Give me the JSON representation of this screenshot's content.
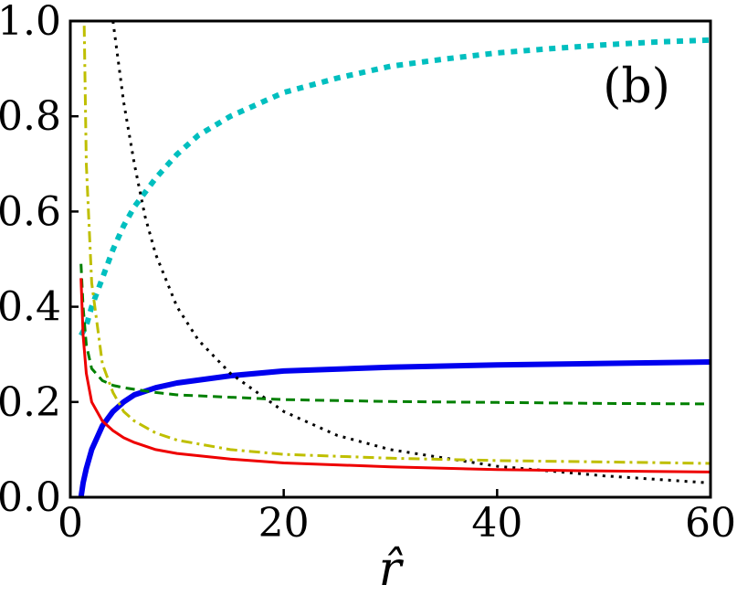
{
  "chart_data": {
    "type": "line",
    "title": "",
    "panel_label": "(b)",
    "xlabel": "r̂",
    "ylabel": "",
    "xlim": [
      0,
      60
    ],
    "ylim": [
      0,
      1.0
    ],
    "x_ticks": [
      0,
      20,
      40,
      60
    ],
    "x_tick_labels": [
      "0",
      "20",
      "40",
      "60"
    ],
    "y_ticks": [
      0,
      0.2,
      0.4,
      0.6,
      0.8,
      1.0
    ],
    "y_tick_labels": [
      "0.0",
      "0.2",
      "0.4",
      "0.6",
      "0.8",
      "1.0"
    ],
    "grid": false,
    "legend": "none",
    "series": [
      {
        "color": "#00bfbf",
        "style": "dotted",
        "width": "thick",
        "x": [
          1,
          1.5,
          2,
          3,
          4,
          5,
          6,
          8,
          10,
          12,
          15,
          20,
          25,
          30,
          35,
          40,
          45,
          50,
          55,
          60
        ],
        "y": [
          0.34,
          0.36,
          0.4,
          0.46,
          0.52,
          0.57,
          0.61,
          0.67,
          0.72,
          0.76,
          0.8,
          0.85,
          0.88,
          0.905,
          0.92,
          0.933,
          0.942,
          0.95,
          0.956,
          0.96
        ]
      },
      {
        "color": "#0000ee",
        "style": "solid",
        "width": "thick",
        "x": [
          1,
          1.2,
          1.5,
          2,
          3,
          4,
          5,
          6,
          8,
          10,
          15,
          20,
          30,
          40,
          50,
          60
        ],
        "y": [
          0.0,
          0.03,
          0.06,
          0.1,
          0.15,
          0.18,
          0.2,
          0.215,
          0.23,
          0.24,
          0.255,
          0.265,
          0.273,
          0.278,
          0.281,
          0.284
        ]
      },
      {
        "color": "#000000",
        "style": "dotted",
        "width": "thin",
        "x": [
          4,
          5,
          6,
          7,
          8,
          10,
          12,
          15,
          20,
          25,
          30,
          40,
          50,
          60
        ],
        "y": [
          1.0,
          0.83,
          0.7,
          0.59,
          0.51,
          0.4,
          0.33,
          0.26,
          0.18,
          0.13,
          0.1,
          0.065,
          0.045,
          0.03
        ]
      },
      {
        "color": "#bfbf00",
        "style": "dashdot",
        "width": "thin",
        "x": [
          1.3,
          1.5,
          2,
          3,
          4,
          5,
          6,
          8,
          10,
          15,
          20,
          30,
          40,
          50,
          60
        ],
        "y": [
          0.99,
          0.7,
          0.45,
          0.28,
          0.22,
          0.18,
          0.16,
          0.135,
          0.12,
          0.1,
          0.09,
          0.082,
          0.077,
          0.074,
          0.071
        ]
      },
      {
        "color": "#008000",
        "style": "dashed",
        "width": "thin",
        "x": [
          1,
          1.2,
          1.5,
          2,
          3,
          4,
          5,
          8,
          10,
          20,
          30,
          40,
          50,
          60
        ],
        "y": [
          0.49,
          0.4,
          0.32,
          0.27,
          0.245,
          0.235,
          0.23,
          0.22,
          0.215,
          0.205,
          0.201,
          0.199,
          0.197,
          0.196
        ]
      },
      {
        "color": "#ee0000",
        "style": "solid",
        "width": "thin",
        "x": [
          1,
          1.2,
          1.5,
          2,
          3,
          4,
          5,
          6,
          8,
          10,
          15,
          20,
          30,
          40,
          50,
          60
        ],
        "y": [
          0.46,
          0.34,
          0.26,
          0.2,
          0.16,
          0.14,
          0.125,
          0.115,
          0.1,
          0.092,
          0.08,
          0.072,
          0.064,
          0.058,
          0.055,
          0.053
        ]
      }
    ]
  }
}
